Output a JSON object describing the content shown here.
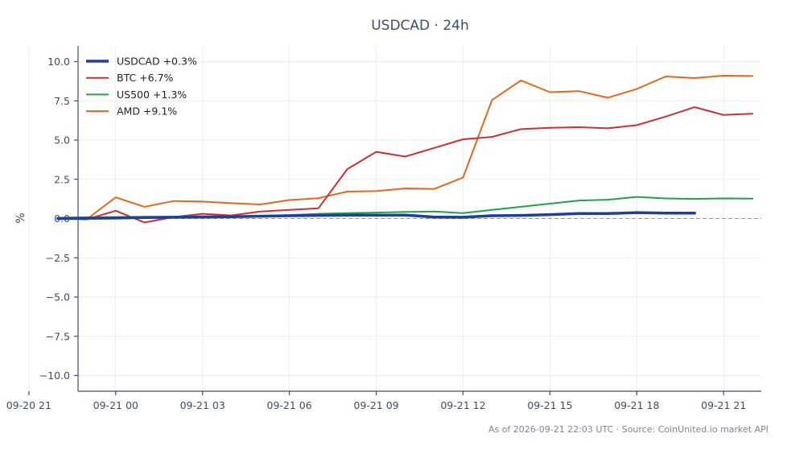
{
  "chart_data": {
    "type": "line",
    "title": "USDCAD · 24h",
    "ylabel": "%",
    "xlabel": "",
    "ylim": [
      -11,
      11
    ],
    "xlim": [
      -1.3,
      22.3
    ],
    "y_ticks": [
      -10.0,
      -7.5,
      -5.0,
      -2.5,
      0.0,
      2.5,
      5.0,
      7.5,
      10.0
    ],
    "y_tick_labels": [
      "−10.0",
      "−7.5",
      "−5.0",
      "−2.5",
      "0.0",
      "2.5",
      "5.0",
      "7.5",
      "10.0"
    ],
    "x_ticks": [
      -3,
      0,
      3,
      6,
      9,
      12,
      15,
      18,
      21
    ],
    "x_tick_labels": [
      "09-20 21",
      "09-21 00",
      "09-21 03",
      "09-21 06",
      "09-21 09",
      "09-21 12",
      "09-21 15",
      "09-21 18",
      "09-21 21"
    ],
    "grid": true,
    "legend_position": "top-left",
    "zero_line": true,
    "series": [
      {
        "name": "USDCAD +0.3%",
        "color": "#1f3fa0",
        "width": 3.5,
        "x": [
          -2,
          -1,
          0,
          1,
          2,
          3,
          4,
          5,
          6,
          7,
          8,
          9,
          10,
          11,
          12,
          13,
          14,
          15,
          16,
          17,
          18,
          19,
          20
        ],
        "values": [
          0.0,
          0.02,
          0.03,
          0.06,
          0.08,
          0.1,
          0.12,
          0.15,
          0.18,
          0.2,
          0.22,
          0.22,
          0.22,
          0.1,
          0.08,
          0.18,
          0.2,
          0.25,
          0.32,
          0.32,
          0.38,
          0.35,
          0.35
        ]
      },
      {
        "name": "BTC +6.7%",
        "color": "#c83232",
        "width": 2,
        "x": [
          -2,
          -1,
          0,
          1,
          2,
          3,
          4,
          5,
          6,
          7,
          8,
          9,
          10,
          11,
          12,
          13,
          14,
          15,
          16,
          17,
          18,
          19,
          20,
          21,
          22
        ],
        "values": [
          0.0,
          -0.05,
          0.5,
          -0.25,
          0.1,
          0.3,
          0.2,
          0.45,
          0.55,
          0.65,
          3.15,
          4.25,
          3.95,
          4.5,
          5.05,
          5.2,
          5.7,
          5.78,
          5.82,
          5.75,
          5.95,
          6.5,
          7.1,
          6.6,
          6.68
        ]
      },
      {
        "name": "US500 +1.3%",
        "color": "#22a04a",
        "width": 2,
        "x": [
          -2,
          -1,
          0,
          1,
          2,
          3,
          4,
          5,
          6,
          7,
          8,
          9,
          10,
          11,
          12,
          13,
          14,
          15,
          16,
          17,
          18,
          19,
          20,
          21,
          22
        ],
        "values": [
          0.05,
          0.08,
          0.1,
          0.12,
          0.12,
          0.15,
          0.15,
          0.18,
          0.22,
          0.3,
          0.35,
          0.38,
          0.42,
          0.45,
          0.35,
          0.55,
          0.75,
          0.95,
          1.15,
          1.2,
          1.38,
          1.28,
          1.25,
          1.28,
          1.27
        ]
      },
      {
        "name": "AMD +9.1%",
        "color": "#e0691e",
        "width": 2,
        "x": [
          -2,
          -1,
          0,
          1,
          2,
          3,
          4,
          5,
          6,
          7,
          8,
          9,
          10,
          11,
          12,
          13,
          14,
          15,
          16,
          17,
          18,
          19,
          20,
          21,
          22
        ],
        "values": [
          0.0,
          -0.05,
          1.35,
          0.75,
          1.12,
          1.08,
          0.98,
          0.9,
          1.18,
          1.3,
          1.72,
          1.75,
          1.92,
          1.88,
          2.62,
          7.55,
          8.8,
          8.05,
          8.12,
          7.7,
          8.25,
          9.05,
          8.95,
          9.1,
          9.08
        ]
      }
    ]
  },
  "footer": "As of 2026-09-21 22:03 UTC · Source: CoinUnited.io market API"
}
